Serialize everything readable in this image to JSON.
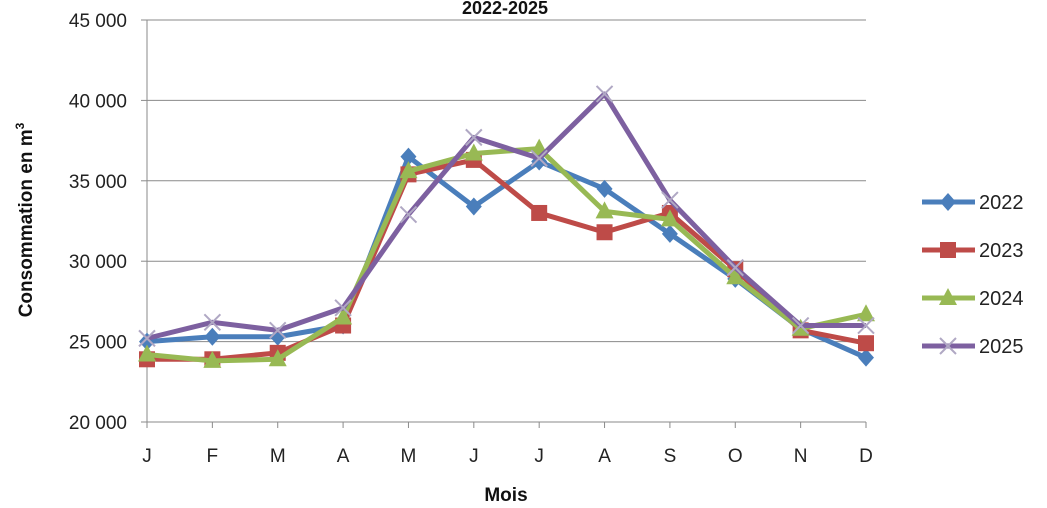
{
  "chart_data": {
    "type": "line",
    "title": "2022-2025",
    "xlabel": "Mois",
    "ylabel": "Consommation en m",
    "ylabel_superscript": "3",
    "categories": [
      "J",
      "F",
      "M",
      "A",
      "M",
      "J",
      "J",
      "A",
      "S",
      "O",
      "N",
      "D"
    ],
    "ylim": [
      20000,
      45000
    ],
    "yticks": [
      20000,
      25000,
      30000,
      35000,
      40000,
      45000
    ],
    "ytick_labels": [
      "20 000",
      "25 000",
      "30 000",
      "35 000",
      "40 000",
      "45 000"
    ],
    "grid": "horizontal",
    "legend_position": "right",
    "series": [
      {
        "name": "2022",
        "color": "#4a7ebb",
        "marker": "diamond",
        "values": [
          25000,
          25300,
          25300,
          26000,
          36500,
          33400,
          36200,
          34500,
          31700,
          28900,
          25800,
          24000
        ]
      },
      {
        "name": "2023",
        "color": "#be4b48",
        "marker": "square",
        "values": [
          23900,
          23900,
          24300,
          26000,
          35400,
          36300,
          33000,
          31800,
          33000,
          29500,
          25700,
          24900
        ]
      },
      {
        "name": "2024",
        "color": "#98b954",
        "marker": "triangle",
        "values": [
          24200,
          23800,
          23900,
          26500,
          35600,
          36700,
          37000,
          33100,
          32600,
          29000,
          25800,
          26700
        ]
      },
      {
        "name": "2025",
        "color": "#7d60a0",
        "marker": "x",
        "values": [
          25200,
          26200,
          25700,
          27100,
          32900,
          37700,
          36400,
          40400,
          33800,
          29600,
          26000,
          26000
        ]
      }
    ]
  }
}
